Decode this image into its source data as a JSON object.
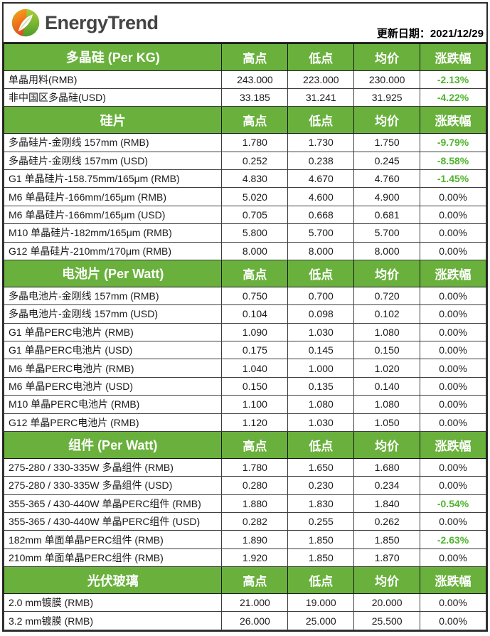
{
  "header": {
    "brand": "EnergyTrend",
    "update_date_label": "更新日期：2021/12/29",
    "update_date": "2021/12/29"
  },
  "columns": [
    "高点",
    "低点",
    "均价",
    "涨跌幅"
  ],
  "colors": {
    "section_header_green": "#69b13c",
    "negative_change_green": "#4fb42d",
    "brand_text_gray": "#444444",
    "logo_orange": "#f7941e",
    "logo_green": "#56a331"
  },
  "icons": {
    "logo": "energytrend-leaf-logo"
  },
  "sections": [
    {
      "title": "多晶硅 (Per KG)",
      "rows": [
        {
          "label": "单晶用料(RMB)",
          "high": "243.000",
          "low": "223.000",
          "avg": "230.000",
          "change": "-2.13%"
        },
        {
          "label": "非中国区多晶硅(USD)",
          "high": "33.185",
          "low": "31.241",
          "avg": "31.925",
          "change": "-4.22%"
        }
      ]
    },
    {
      "title": "硅片",
      "rows": [
        {
          "label": "多晶硅片-金刚线 157mm (RMB)",
          "high": "1.780",
          "low": "1.730",
          "avg": "1.750",
          "change": "-9.79%"
        },
        {
          "label": "多晶硅片-金刚线 157mm (USD)",
          "high": "0.252",
          "low": "0.238",
          "avg": "0.245",
          "change": "-8.58%"
        },
        {
          "label": "G1 单晶硅片-158.75mm/165μm (RMB)",
          "high": "4.830",
          "low": "4.670",
          "avg": "4.760",
          "change": "-1.45%"
        },
        {
          "label": "M6 单晶硅片-166mm/165μm (RMB)",
          "high": "5.020",
          "low": "4.600",
          "avg": "4.900",
          "change": "0.00%"
        },
        {
          "label": "M6 单晶硅片-166mm/165μm (USD)",
          "high": "0.705",
          "low": "0.668",
          "avg": "0.681",
          "change": "0.00%"
        },
        {
          "label": "M10 单晶硅片-182mm/165μm (RMB)",
          "high": "5.800",
          "low": "5.700",
          "avg": "5.700",
          "change": "0.00%"
        },
        {
          "label": "G12 单晶硅片-210mm/170μm (RMB)",
          "high": "8.000",
          "low": "8.000",
          "avg": "8.000",
          "change": "0.00%"
        }
      ]
    },
    {
      "title": "电池片 (Per Watt)",
      "rows": [
        {
          "label": "多晶电池片-金刚线 157mm (RMB)",
          "high": "0.750",
          "low": "0.700",
          "avg": "0.720",
          "change": "0.00%"
        },
        {
          "label": "多晶电池片-金刚线 157mm (USD)",
          "high": "0.104",
          "low": "0.098",
          "avg": "0.102",
          "change": "0.00%"
        },
        {
          "label": "G1 单晶PERC电池片 (RMB)",
          "high": "1.090",
          "low": "1.030",
          "avg": "1.080",
          "change": "0.00%"
        },
        {
          "label": "G1 单晶PERC电池片 (USD)",
          "high": "0.175",
          "low": "0.145",
          "avg": "0.150",
          "change": "0.00%"
        },
        {
          "label": "M6 单晶PERC电池片 (RMB)",
          "high": "1.040",
          "low": "1.000",
          "avg": "1.020",
          "change": "0.00%"
        },
        {
          "label": "M6 单晶PERC电池片 (USD)",
          "high": "0.150",
          "low": "0.135",
          "avg": "0.140",
          "change": "0.00%"
        },
        {
          "label": "M10 单晶PERC电池片 (RMB)",
          "high": "1.100",
          "low": "1.080",
          "avg": "1.080",
          "change": "0.00%"
        },
        {
          "label": "G12 单晶PERC电池片 (RMB)",
          "high": "1.120",
          "low": "1.030",
          "avg": "1.050",
          "change": "0.00%"
        }
      ]
    },
    {
      "title": "组件 (Per Watt)",
      "rows": [
        {
          "label": "275-280 / 330-335W 多晶组件 (RMB)",
          "high": "1.780",
          "low": "1.650",
          "avg": "1.680",
          "change": "0.00%"
        },
        {
          "label": "275-280 / 330-335W 多晶组件 (USD)",
          "high": "0.280",
          "low": "0.230",
          "avg": "0.234",
          "change": "0.00%"
        },
        {
          "label": "355-365 / 430-440W 单晶PERC组件 (RMB)",
          "high": "1.880",
          "low": "1.830",
          "avg": "1.840",
          "change": "-0.54%"
        },
        {
          "label": "355-365 / 430-440W 单晶PERC组件 (USD)",
          "high": "0.282",
          "low": "0.255",
          "avg": "0.262",
          "change": "0.00%"
        },
        {
          "label": "182mm 单面单晶PERC组件 (RMB)",
          "high": "1.890",
          "low": "1.850",
          "avg": "1.850",
          "change": "-2.63%"
        },
        {
          "label": "210mm 单面单晶PERC组件 (RMB)",
          "high": "1.920",
          "low": "1.850",
          "avg": "1.870",
          "change": "0.00%"
        }
      ]
    },
    {
      "title": "光伏玻璃",
      "rows": [
        {
          "label": "2.0 mm镀膜 (RMB)",
          "high": "21.000",
          "low": "19.000",
          "avg": "20.000",
          "change": "0.00%"
        },
        {
          "label": "3.2 mm镀膜 (RMB)",
          "high": "26.000",
          "low": "25.000",
          "avg": "25.500",
          "change": "0.00%"
        }
      ]
    }
  ]
}
